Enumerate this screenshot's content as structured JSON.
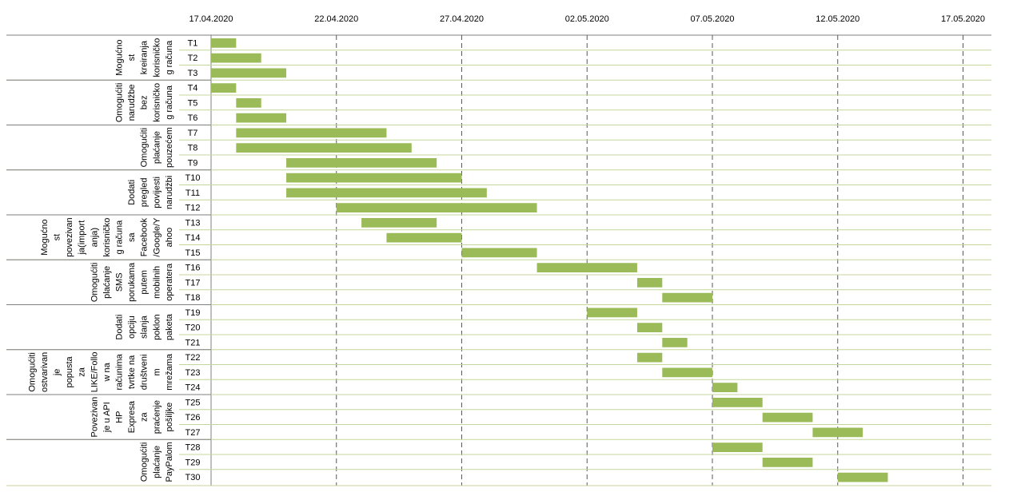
{
  "chart_data": {
    "type": "gantt",
    "title": "",
    "x_axis": {
      "type": "date",
      "tick_labels": [
        "17.04.2020",
        "22.04.2020",
        "27.04.2020",
        "02.05.2020",
        "07.05.2020",
        "12.05.2020",
        "17.05.2020"
      ],
      "range": [
        "2020-04-17",
        "2020-05-17"
      ],
      "gridlines": "dashed"
    },
    "bar_color": "#9BBB59",
    "groups": [
      {
        "label": "Mogućnost kreiranja korisničkog računa",
        "label_lines": [
          "Mogućno",
          "st",
          "kreiranja",
          "korisničko",
          "g računa"
        ],
        "tasks": [
          "T1",
          "T2",
          "T3"
        ]
      },
      {
        "label": "Omogućiti narudžbe bez korisničkog računa",
        "label_lines": [
          "Omogućiti",
          "narudžbe",
          "bez",
          "korisničko",
          "g računa"
        ],
        "tasks": [
          "T4",
          "T5",
          "T6"
        ]
      },
      {
        "label": "Omogućiti plaćanje pouzećem",
        "label_lines": [
          "Omogućiti",
          "plaćanje",
          "pouzećem"
        ],
        "tasks": [
          "T7",
          "T8",
          "T9"
        ]
      },
      {
        "label": "Dodati pregled povijesti narudžbi",
        "label_lines": [
          "Dodati",
          "pregled",
          "povijesti",
          "narudžbi"
        ],
        "tasks": [
          "T10",
          "T11",
          "T12"
        ]
      },
      {
        "label": "Mogućnost povezivanja(importanja) korisničkog računa sa Facebook/Google/Yahoo",
        "label_lines": [
          "Mogućno",
          "st",
          "povezivan",
          "ja(import",
          "anja)",
          "korisničko",
          "g računa",
          "sa",
          "Facebook",
          "/Google/Y",
          "ahoo"
        ],
        "tasks": [
          "T13",
          "T14",
          "T15"
        ]
      },
      {
        "label": "Omogućiti plaćanje SMS porukama putem mobilnih operatera",
        "label_lines": [
          "Omogućiti",
          "plaćanje",
          "SMS",
          "porukama",
          "putem",
          "mobilnih",
          "operatera"
        ],
        "tasks": [
          "T16",
          "T17",
          "T18"
        ]
      },
      {
        "label": "Dodati opciju slanja poklon paketa",
        "label_lines": [
          "Dodati",
          "opciju",
          "slanja",
          "poklon",
          "paketa"
        ],
        "tasks": [
          "T19",
          "T20",
          "T21"
        ]
      },
      {
        "label": "Omogućiti ostvarivanje popusta za LIKE/Follow na računima tvrtke na društvenim mrežama",
        "label_lines": [
          "Omogućiti",
          "ostvarivan",
          "je",
          "popusta",
          "za",
          "LIKE/Follo",
          "w na",
          "računima",
          "tvrtke na",
          "društveni",
          "m",
          "mrežama"
        ],
        "tasks": [
          "T22",
          "T23",
          "T24"
        ]
      },
      {
        "label": "Povezivanje u API HP Expressa za praćenje pošiljke",
        "label_lines": [
          "Povezivan",
          "je u API",
          "HP",
          "Expresa",
          "za",
          "praćenje",
          "pošiljke"
        ],
        "tasks": [
          "T25",
          "T26",
          "T27"
        ]
      },
      {
        "label": "Omogućiti plaćanje PayPalom",
        "label_lines": [
          "Omogućiti",
          "plaćanje",
          "PayPalom"
        ],
        "tasks": [
          "T28",
          "T29",
          "T30"
        ]
      }
    ],
    "tasks": [
      {
        "name": "T1",
        "start": "2020-04-17",
        "end": "2020-04-18"
      },
      {
        "name": "T2",
        "start": "2020-04-17",
        "end": "2020-04-19"
      },
      {
        "name": "T3",
        "start": "2020-04-17",
        "end": "2020-04-20"
      },
      {
        "name": "T4",
        "start": "2020-04-17",
        "end": "2020-04-18"
      },
      {
        "name": "T5",
        "start": "2020-04-18",
        "end": "2020-04-19"
      },
      {
        "name": "T6",
        "start": "2020-04-18",
        "end": "2020-04-20"
      },
      {
        "name": "T7",
        "start": "2020-04-18",
        "end": "2020-04-24"
      },
      {
        "name": "T8",
        "start": "2020-04-18",
        "end": "2020-04-25"
      },
      {
        "name": "T9",
        "start": "2020-04-20",
        "end": "2020-04-26"
      },
      {
        "name": "T10",
        "start": "2020-04-20",
        "end": "2020-04-27"
      },
      {
        "name": "T11",
        "start": "2020-04-20",
        "end": "2020-04-28"
      },
      {
        "name": "T12",
        "start": "2020-04-22",
        "end": "2020-04-30"
      },
      {
        "name": "T13",
        "start": "2020-04-23",
        "end": "2020-04-26"
      },
      {
        "name": "T14",
        "start": "2020-04-24",
        "end": "2020-04-27"
      },
      {
        "name": "T15",
        "start": "2020-04-27",
        "end": "2020-04-30"
      },
      {
        "name": "T16",
        "start": "2020-04-30",
        "end": "2020-05-04"
      },
      {
        "name": "T17",
        "start": "2020-05-04",
        "end": "2020-05-05"
      },
      {
        "name": "T18",
        "start": "2020-05-05",
        "end": "2020-05-07"
      },
      {
        "name": "T19",
        "start": "2020-05-02",
        "end": "2020-05-04"
      },
      {
        "name": "T20",
        "start": "2020-05-04",
        "end": "2020-05-05"
      },
      {
        "name": "T21",
        "start": "2020-05-05",
        "end": "2020-05-06"
      },
      {
        "name": "T22",
        "start": "2020-05-04",
        "end": "2020-05-05"
      },
      {
        "name": "T23",
        "start": "2020-05-05",
        "end": "2020-05-07"
      },
      {
        "name": "T24",
        "start": "2020-05-07",
        "end": "2020-05-08"
      },
      {
        "name": "T25",
        "start": "2020-05-07",
        "end": "2020-05-09"
      },
      {
        "name": "T26",
        "start": "2020-05-09",
        "end": "2020-05-11"
      },
      {
        "name": "T27",
        "start": "2020-05-11",
        "end": "2020-05-13"
      },
      {
        "name": "T28",
        "start": "2020-05-07",
        "end": "2020-05-09"
      },
      {
        "name": "T29",
        "start": "2020-05-09",
        "end": "2020-05-11"
      },
      {
        "name": "T30",
        "start": "2020-05-12",
        "end": "2020-05-14"
      }
    ]
  }
}
